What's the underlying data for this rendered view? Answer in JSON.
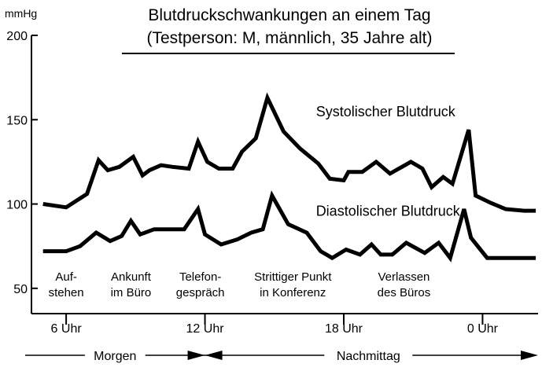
{
  "title_line1": "Blutdruckschwankungen an einem Tag",
  "title_line2": "(Testperson: M, männlich, 35 Jahre alt)",
  "chart_data": {
    "type": "line",
    "ylabel": "mmHg",
    "ylim": [
      35,
      200
    ],
    "yticks": [
      50,
      100,
      150,
      200
    ],
    "x_unit": "Uhr",
    "xlim": [
      4.5,
      26.4
    ],
    "xticks": [
      {
        "value": 6,
        "label": "6 Uhr"
      },
      {
        "value": 12,
        "label": "12 Uhr"
      },
      {
        "value": 18,
        "label": "18 Uhr"
      },
      {
        "value": 24,
        "label": "0 Uhr"
      }
    ],
    "series": [
      {
        "name": "Systolischer Blutdruck",
        "x": [
          5.0,
          6.0,
          6.9,
          7.4,
          7.8,
          8.3,
          8.9,
          9.3,
          9.6,
          10.1,
          10.6,
          11.3,
          11.7,
          12.1,
          12.6,
          13.2,
          13.6,
          14.2,
          14.7,
          15.4,
          16.1,
          16.9,
          17.4,
          18.0,
          18.2,
          18.8,
          19.4,
          20.0,
          20.9,
          21.4,
          21.8,
          22.3,
          22.7,
          23.4,
          23.7,
          24.3,
          25.0,
          25.8,
          26.3
        ],
        "values": [
          100,
          98,
          106,
          126,
          120,
          122,
          128,
          117,
          120,
          123,
          122,
          121,
          137,
          125,
          121,
          121,
          131,
          139,
          163,
          143,
          133,
          124,
          115,
          114,
          119,
          119,
          125,
          118,
          125,
          121,
          110,
          116,
          112,
          144,
          105,
          101,
          97,
          96,
          96
        ],
        "label_x": 16.8,
        "label_y": 152
      },
      {
        "name": "Diastolischer Blutdruck",
        "x": [
          5.0,
          6.0,
          6.6,
          7.3,
          7.9,
          8.4,
          8.8,
          9.2,
          9.8,
          10.4,
          11.1,
          11.7,
          12.0,
          12.7,
          13.4,
          14.0,
          14.5,
          14.9,
          15.6,
          16.4,
          17.0,
          17.5,
          18.1,
          18.7,
          19.2,
          19.6,
          20.1,
          20.7,
          21.5,
          22.1,
          22.6,
          23.2,
          23.5,
          24.2,
          24.8,
          26.3
        ],
        "values": [
          72,
          72,
          75,
          83,
          78,
          81,
          90,
          82,
          85,
          85,
          85,
          97,
          82,
          76,
          79,
          83,
          85,
          105,
          88,
          83,
          72,
          68,
          73,
          70,
          76,
          70,
          70,
          77,
          71,
          77,
          68,
          97,
          80,
          68,
          68,
          68
        ],
        "label_x": 16.8,
        "label_y": 93
      }
    ],
    "annotations": [
      {
        "lines": [
          "Auf-",
          "stehen"
        ],
        "x": 6.0
      },
      {
        "lines": [
          "Ankunft",
          "im Büro"
        ],
        "x": 8.8
      },
      {
        "lines": [
          "Telefon-",
          "gespräch"
        ],
        "x": 11.8
      },
      {
        "lines": [
          "Strittiger Punkt",
          "in Konferenz"
        ],
        "x": 15.8
      },
      {
        "lines": [
          "Verlassen",
          "des Büros"
        ],
        "x": 20.6
      }
    ],
    "periods": [
      {
        "label": "Morgen",
        "from": 4.5,
        "to": 12.0
      },
      {
        "label": "Nachmittag",
        "from": 12.0,
        "to": 26.4
      }
    ]
  }
}
